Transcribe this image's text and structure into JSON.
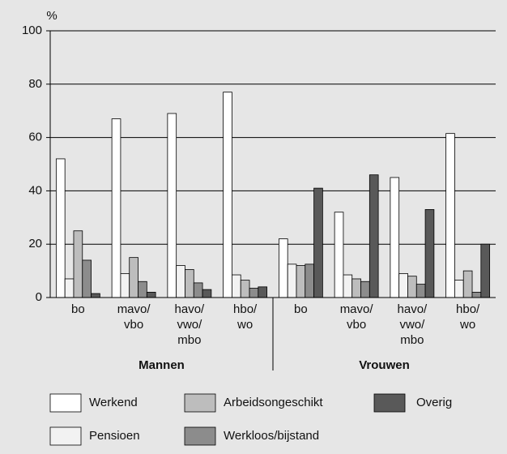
{
  "chart_data": {
    "type": "grouped-bar",
    "y_label": "%",
    "groups": [
      "Mannen",
      "Vrouwen"
    ],
    "categories": [
      [
        "bo"
      ],
      [
        "mavo/",
        "vbo"
      ],
      [
        "havo/",
        "vwo/",
        "mbo"
      ],
      [
        "hbo/",
        "wo"
      ],
      [
        "bo"
      ],
      [
        "mavo/",
        "vbo"
      ],
      [
        "havo/",
        "vwo/",
        "mbo"
      ],
      [
        "hbo/",
        "wo"
      ]
    ],
    "series": [
      {
        "name": "Werkend",
        "color": "#ffffff",
        "values": [
          52,
          67,
          69,
          77,
          22,
          32,
          45,
          61.5
        ]
      },
      {
        "name": "Pensioen",
        "color": "#f2f2f2",
        "values": [
          7,
          9,
          12,
          8.5,
          12.5,
          8.5,
          9,
          6.5
        ]
      },
      {
        "name": "Arbeidsongeschikt",
        "color": "#bdbdbd",
        "values": [
          25,
          15,
          10.5,
          6.5,
          12,
          7,
          8,
          10
        ]
      },
      {
        "name": "Werkloos/bijstand",
        "color": "#8c8c8c",
        "values": [
          14,
          6,
          5.5,
          3.5,
          12.5,
          6,
          5,
          2
        ]
      },
      {
        "name": "Overig",
        "color": "#595959",
        "values": [
          1.5,
          2,
          3,
          4,
          41,
          46,
          33,
          20
        ]
      }
    ],
    "ylim": [
      0,
      100
    ],
    "yticks": [
      0,
      20,
      40,
      60,
      80,
      100
    ],
    "grid": true
  }
}
